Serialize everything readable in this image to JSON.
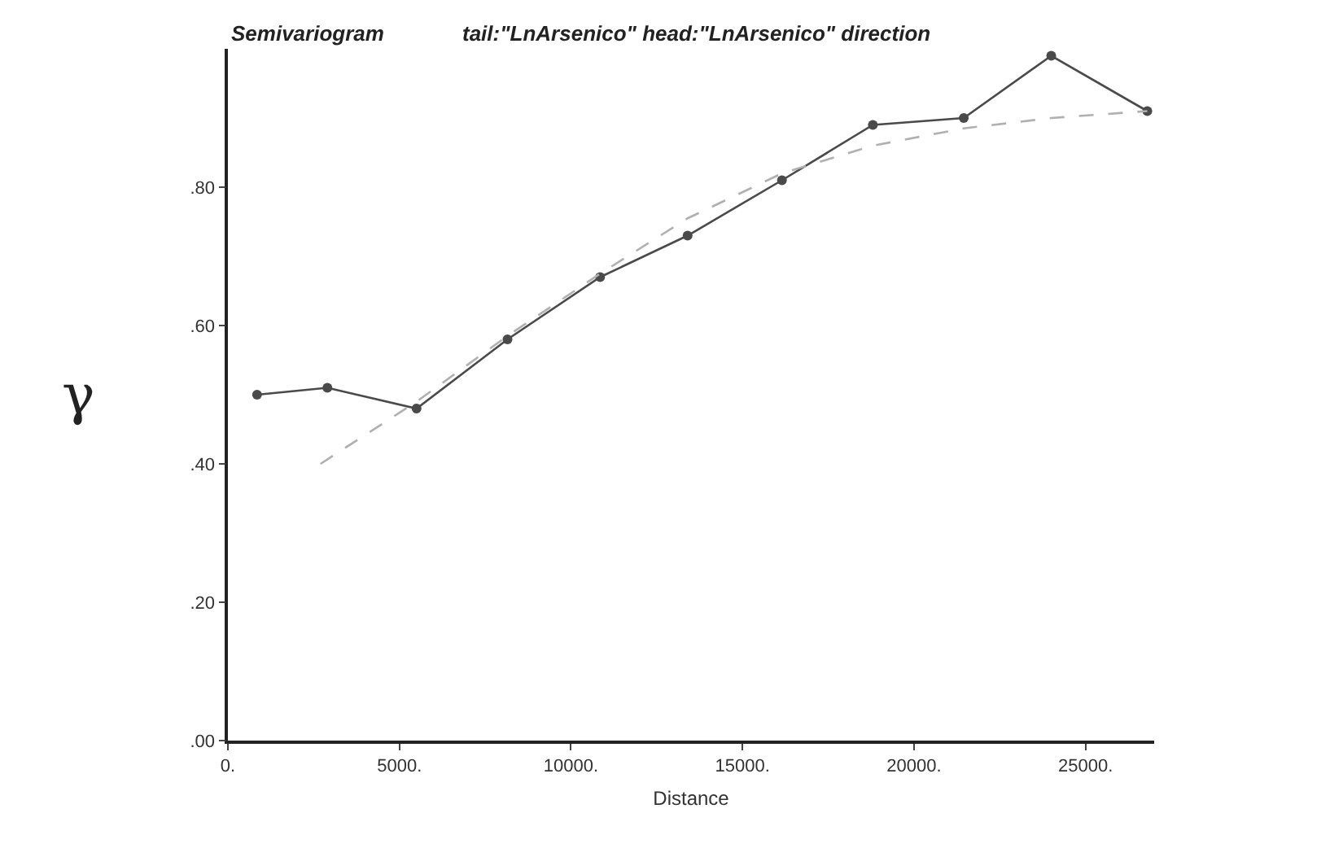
{
  "chart_data": {
    "type": "line",
    "title": "Semivariogram",
    "subtitle": "tail:\"LnArsenico\" head:\"LnArsenico\" direction",
    "xlabel": "Distance",
    "ylabel": "γ",
    "series": [
      {
        "color": "#4a4a4a",
        "marker": "circle",
        "line_style": "solid",
        "x": [
          850,
          2900,
          5500,
          8150,
          10850,
          13400,
          16150,
          18800,
          21450,
          24000,
          26800
        ],
        "values": [
          0.5,
          0.51,
          0.48,
          0.58,
          0.67,
          0.73,
          0.81,
          0.89,
          0.9,
          0.99,
          0.91
        ]
      },
      {
        "color": "#b0b0b0",
        "marker": "none",
        "line_style": "dashed",
        "x": [
          2700,
          5500,
          8150,
          10850,
          13400,
          16150,
          18800,
          21450,
          24000,
          26800
        ],
        "values": [
          0.4,
          0.49,
          0.585,
          0.675,
          0.755,
          0.82,
          0.86,
          0.885,
          0.9,
          0.91
        ]
      }
    ],
    "xlim": [
      0,
      27000
    ],
    "ylim": [
      0,
      1
    ],
    "xticks": [
      {
        "value": 0,
        "label": "0."
      },
      {
        "value": 5000,
        "label": "5000."
      },
      {
        "value": 10000,
        "label": "10000."
      },
      {
        "value": 15000,
        "label": "15000."
      },
      {
        "value": 20000,
        "label": "20000."
      },
      {
        "value": 25000,
        "label": "25000."
      }
    ],
    "yticks": [
      {
        "value": 0,
        "label": ".00"
      },
      {
        "value": 0.2,
        "label": ".20"
      },
      {
        "value": 0.4,
        "label": ".40"
      },
      {
        "value": 0.6,
        "label": ".60"
      },
      {
        "value": 0.8,
        "label": ".80"
      }
    ],
    "tick_labels": "xy"
  }
}
